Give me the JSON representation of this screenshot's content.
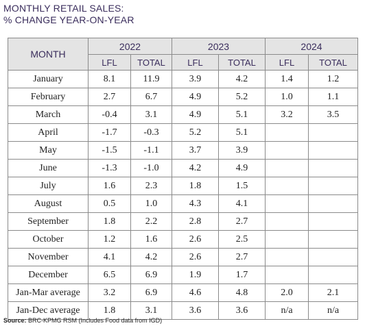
{
  "title": {
    "line1": "MONTHLY RETAIL SALES:",
    "line2": "% CHANGE YEAR-ON-YEAR"
  },
  "table": {
    "month_header": "MONTH",
    "years": [
      "2022",
      "2023",
      "2024"
    ],
    "sub_headers": [
      "LFL",
      "TOTAL",
      "LFL",
      "TOTAL",
      "LFL",
      "TOTAL"
    ],
    "rows": [
      {
        "month": "January",
        "values": [
          "8.1",
          "11.9",
          "3.9",
          "4.2",
          "1.4",
          "1.2"
        ]
      },
      {
        "month": "February",
        "values": [
          "2.7",
          "6.7",
          "4.9",
          "5.2",
          "1.0",
          "1.1"
        ]
      },
      {
        "month": "March",
        "values": [
          "-0.4",
          "3.1",
          "4.9",
          "5.1",
          "3.2",
          "3.5"
        ]
      },
      {
        "month": "April",
        "values": [
          "-1.7",
          "-0.3",
          "5.2",
          "5.1",
          "",
          ""
        ]
      },
      {
        "month": "May",
        "values": [
          "-1.5",
          "-1.1",
          "3.7",
          "3.9",
          "",
          ""
        ]
      },
      {
        "month": "June",
        "values": [
          "-1.3",
          "-1.0",
          "4.2",
          "4.9",
          "",
          ""
        ]
      },
      {
        "month": "July",
        "values": [
          "1.6",
          "2.3",
          "1.8",
          "1.5",
          "",
          ""
        ]
      },
      {
        "month": "August",
        "values": [
          "0.5",
          "1.0",
          "4.3",
          "4.1",
          "",
          ""
        ]
      },
      {
        "month": "September",
        "values": [
          "1.8",
          "2.2",
          "2.8",
          "2.7",
          "",
          ""
        ]
      },
      {
        "month": "October",
        "values": [
          "1.2",
          "1.6",
          "2.6",
          "2.5",
          "",
          ""
        ]
      },
      {
        "month": "November",
        "values": [
          "4.1",
          "4.2",
          "2.6",
          "2.7",
          "",
          ""
        ]
      },
      {
        "month": "December",
        "values": [
          "6.5",
          "6.9",
          "1.9",
          "1.7",
          "",
          ""
        ]
      },
      {
        "month": "Jan-Mar average",
        "values": [
          "3.2",
          "6.9",
          "4.6",
          "4.8",
          "2.0",
          "2.1"
        ]
      },
      {
        "month": "Jan-Dec average",
        "values": [
          "1.8",
          "3.1",
          "3.6",
          "3.6",
          "n/a",
          "n/a"
        ]
      }
    ]
  },
  "source": {
    "label": "Source:",
    "text": "BRC-KPMG RSM (Includes Food data from IGD)"
  }
}
